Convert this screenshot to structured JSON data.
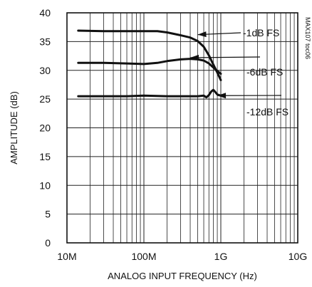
{
  "chart_data": {
    "type": "line",
    "xlabel": "ANALOG INPUT FREQUENCY (Hz)",
    "ylabel": "AMPLITUDE (dB)",
    "xscale": "log",
    "xlim": [
      10000000,
      10000000000
    ],
    "ylim": [
      0,
      40
    ],
    "x_tick_labels": [
      "10M",
      "100M",
      "1G",
      "10G"
    ],
    "y_ticks": [
      0,
      5,
      10,
      15,
      20,
      25,
      30,
      35,
      40
    ],
    "grid": true,
    "figure_id": "MAX107 toc06",
    "series": [
      {
        "name": "-1dB FS",
        "x": [
          14000000,
          30000000,
          60000000,
          100000000,
          150000000,
          200000000,
          300000000,
          400000000,
          500000000,
          600000000,
          700000000,
          800000000,
          900000000,
          1000000000
        ],
        "y": [
          36.9,
          36.8,
          36.8,
          36.8,
          36.8,
          36.6,
          36.1,
          35.7,
          35.1,
          34.1,
          32.6,
          31.0,
          29.6,
          28.3
        ]
      },
      {
        "name": "-6dB FS",
        "x": [
          14000000,
          30000000,
          60000000,
          100000000,
          150000000,
          200000000,
          300000000,
          400000000,
          500000000,
          600000000,
          700000000,
          800000000,
          900000000,
          1000000000
        ],
        "y": [
          31.3,
          31.3,
          31.2,
          31.1,
          31.3,
          31.6,
          31.9,
          32.0,
          31.9,
          31.7,
          31.2,
          30.5,
          29.9,
          29.4
        ]
      },
      {
        "name": "-12dB FS",
        "x": [
          14000000,
          30000000,
          60000000,
          100000000,
          200000000,
          300000000,
          500000000,
          600000000,
          650000000,
          700000000,
          750000000,
          800000000,
          850000000,
          900000000,
          1000000000
        ],
        "y": [
          25.5,
          25.5,
          25.5,
          25.6,
          25.5,
          25.5,
          25.5,
          25.6,
          25.3,
          25.7,
          26.3,
          26.6,
          26.2,
          25.8,
          25.6
        ]
      }
    ],
    "annotations": [
      {
        "text": "-1dB FS",
        "target_series": 0,
        "arrow_to": [
          500000000,
          36.2
        ]
      },
      {
        "text": "",
        "target_series": 1,
        "arrow_to": [
          400000000,
          32.2
        ]
      },
      {
        "text": "-6dB FS",
        "target_series": 1,
        "arrow_to": null
      },
      {
        "text": "-12dB FS",
        "target_series": 2,
        "arrow_to": [
          900000000,
          25.6
        ]
      }
    ]
  }
}
